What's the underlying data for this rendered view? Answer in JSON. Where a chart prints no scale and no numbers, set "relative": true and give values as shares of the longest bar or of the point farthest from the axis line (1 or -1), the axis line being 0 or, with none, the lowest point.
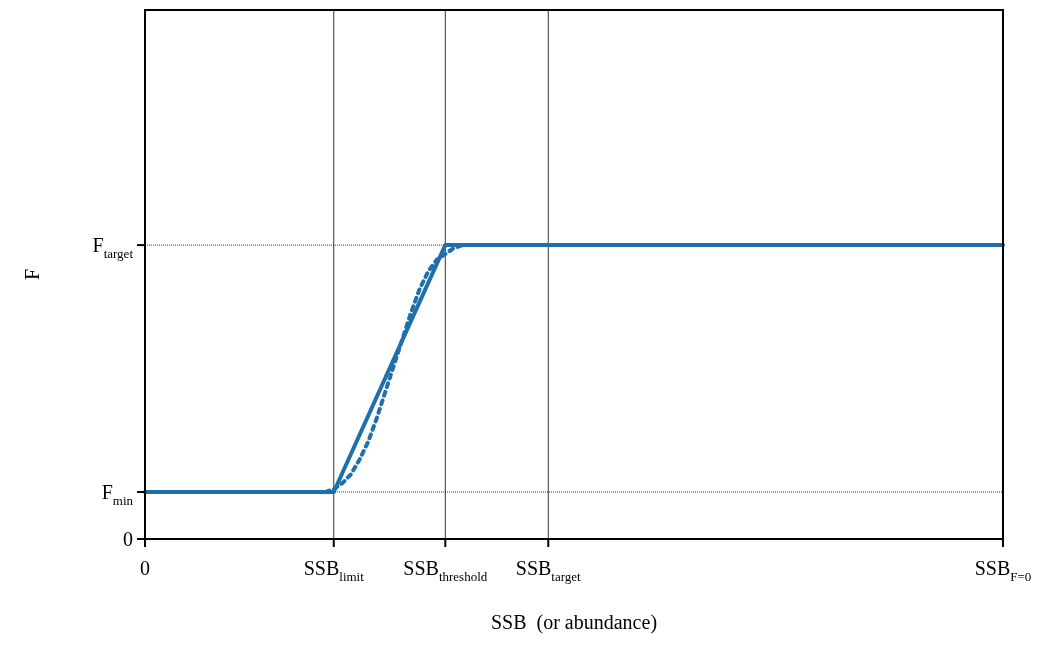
{
  "chart_data": {
    "type": "line",
    "xlabel": "SSB  (or abundance)",
    "ylabel": "F",
    "relative": true,
    "grid": "x",
    "legend": false,
    "marker": "none",
    "categories": [
      "0",
      null,
      null,
      null,
      null,
      null,
      null,
      null,
      null,
      null,
      null,
      null,
      null,
      null,
      null,
      null,
      null,
      null,
      null,
      null,
      null,
      null,
      "SSB$_{limit}$",
      null,
      null,
      null,
      null,
      null,
      null,
      null,
      null,
      null,
      null,
      null,
      null,
      "SSB$_{threshold}$",
      null,
      null,
      null,
      null,
      null,
      null,
      null,
      null,
      null,
      null,
      null,
      "SSB$_{target}$",
      null,
      null,
      null,
      null,
      null,
      null,
      null,
      null,
      null,
      null,
      null,
      null,
      null,
      null,
      null,
      null,
      null,
      null,
      null,
      null,
      null,
      null,
      null,
      null,
      null,
      null,
      null,
      null,
      null,
      null,
      null,
      null,
      null,
      null,
      null,
      null,
      null,
      null,
      null,
      null,
      null,
      null,
      null,
      null,
      null,
      null,
      null,
      null,
      null,
      null,
      null,
      null,
      "SSB$_{F=0}$"
    ],
    "ref_lines": [
      {
        "axis": "y",
        "value": 0,
        "label": "0",
        "color": "#000000"
      },
      {
        "axis": "y",
        "value": 0.16,
        "label": "F$_{min}$",
        "color": "#000000",
        "line_style": "dotted"
      },
      {
        "axis": "y",
        "value": 1,
        "label": "F$_{target}$",
        "color": "#000000",
        "line_style": "dotted"
      }
    ],
    "series": [
      {
        "color": "#1f6fad",
        "line_style": "solid",
        "values": [
          0.16,
          null,
          null,
          null,
          null,
          null,
          null,
          null,
          null,
          null,
          null,
          null,
          null,
          null,
          null,
          null,
          null,
          null,
          null,
          null,
          null,
          null,
          0.16,
          null,
          null,
          null,
          null,
          null,
          null,
          null,
          null,
          null,
          null,
          null,
          null,
          1,
          null,
          null,
          null,
          null,
          null,
          null,
          null,
          null,
          null,
          null,
          null,
          null,
          null,
          null,
          null,
          null,
          null,
          null,
          null,
          null,
          null,
          null,
          null,
          null,
          null,
          null,
          null,
          null,
          null,
          null,
          null,
          null,
          null,
          null,
          null,
          null,
          null,
          null,
          null,
          null,
          null,
          null,
          null,
          null,
          null,
          null,
          null,
          null,
          null,
          null,
          null,
          null,
          null,
          null,
          null,
          null,
          null,
          null,
          null,
          null,
          null,
          null,
          null,
          null,
          1
        ]
      },
      {
        "color": "#1f6fad",
        "line_style": "dotted",
        "values": [
          null,
          null,
          null,
          null,
          null,
          null,
          null,
          null,
          null,
          null,
          null,
          null,
          null,
          null,
          null,
          null,
          null,
          null,
          null,
          null,
          0.16,
          0.16,
          0.17,
          0.19,
          0.22,
          0.27,
          0.33,
          0.41,
          0.5,
          0.59,
          0.68,
          0.77,
          0.85,
          0.91,
          0.95,
          0.97,
          0.99,
          1,
          1,
          1,
          1,
          null,
          null,
          null,
          null,
          null,
          null,
          null,
          null,
          null,
          null,
          null,
          null,
          null,
          null,
          null,
          null,
          null,
          null,
          null,
          null,
          null,
          null,
          null,
          null,
          null,
          null,
          null,
          null,
          null,
          null,
          null,
          null,
          null,
          null,
          null,
          null,
          null,
          null,
          null,
          null,
          null,
          null,
          null,
          null,
          null,
          null,
          null,
          null,
          null,
          null,
          null,
          null,
          null,
          null,
          null,
          null,
          null,
          null,
          null,
          null
        ]
      }
    ]
  }
}
